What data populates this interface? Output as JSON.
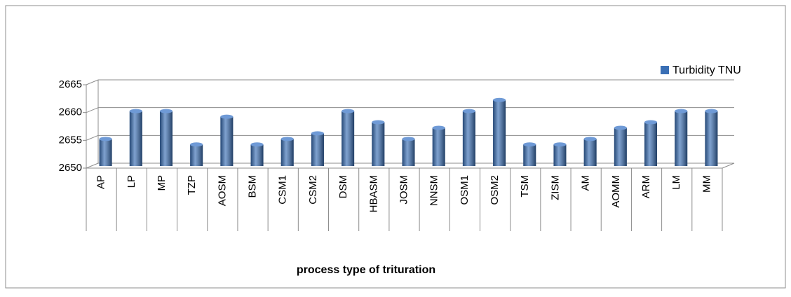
{
  "chart_data": {
    "type": "bar",
    "x_label": "process type of trituration",
    "categories": [
      "AP",
      "LP",
      "MP",
      "TZP",
      "AOSM",
      "BSM",
      "CSM1",
      "CSM2",
      "DSM",
      "HBASM",
      "JOSM",
      "NNSM",
      "OSM1",
      "OSM2",
      "TSM",
      "ZISM",
      "AM",
      "AOMM",
      "ARM",
      "LM",
      "MM"
    ],
    "series": [
      {
        "name": "Turbidity TNU",
        "color": "#3a6fb5",
        "values": [
          2655,
          2660,
          2660,
          2654,
          2659,
          2654,
          2655,
          2656,
          2660,
          2658,
          2655,
          2657,
          2660,
          2662,
          2654,
          2654,
          2655,
          2657,
          2658,
          2660,
          2660
        ]
      }
    ],
    "ylim": [
      2650,
      2665
    ],
    "yticks": [
      2650,
      2655,
      2660,
      2665
    ],
    "grid": true,
    "legend": "right"
  }
}
